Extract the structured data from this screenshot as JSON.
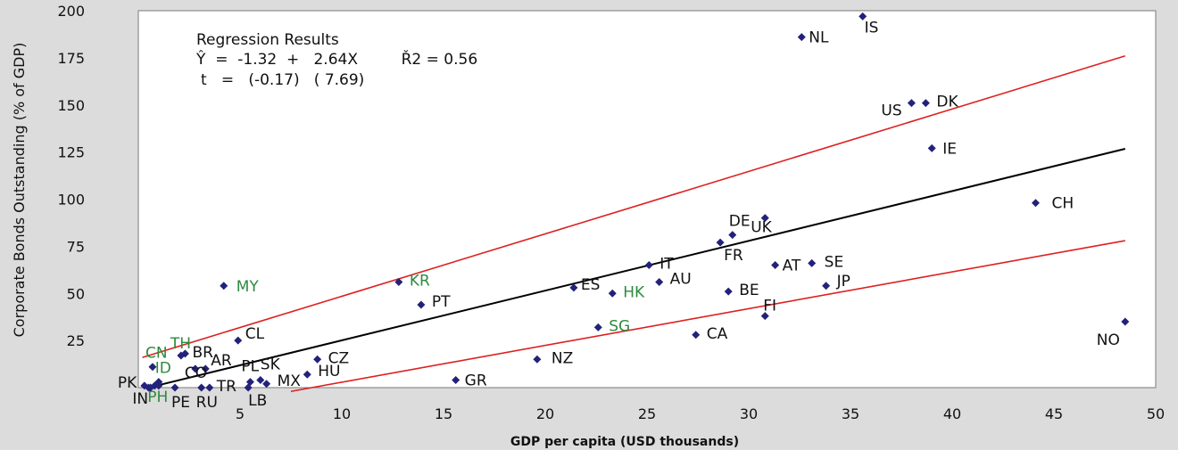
{
  "chart_data": {
    "type": "scatter",
    "xlabel": "GDP per capita (USD thousands)",
    "ylabel": "Corporate Bonds Outstanding (% of GDP)",
    "xlim": [
      0,
      50
    ],
    "ylim": [
      0,
      200
    ],
    "xticks": [
      5,
      10,
      15,
      20,
      25,
      30,
      35,
      40,
      45,
      50
    ],
    "yticks": [
      25,
      50,
      75,
      100,
      125,
      150,
      175,
      200
    ],
    "regression_text": {
      "title": "Regression Results",
      "line1": "Ŷ  =  -1.32  +   2.64X         Ř2 = 0.56",
      "line2": "t   =   (-0.17)   ( 7.69)"
    },
    "regression_line": {
      "intercept": -1.32,
      "slope": 2.64,
      "color": "#000000"
    },
    "band_lines": [
      {
        "from": [
          0.2,
          16
        ],
        "to": [
          48.5,
          176
        ],
        "color": "#dd2020"
      },
      {
        "from": [
          7.5,
          -2
        ],
        "to": [
          48.5,
          78
        ],
        "color": "#dd2020"
      }
    ],
    "marker_color": "#22227a",
    "colors": {
      "default_label": "#111111",
      "highlight_label": "#2e8b3e"
    },
    "points": [
      {
        "label": "IS",
        "x": 35.6,
        "y": 197,
        "dx": 2,
        "dy": 18
      },
      {
        "label": "NL",
        "x": 32.6,
        "y": 186,
        "dx": 8,
        "dy": 6
      },
      {
        "label": "US",
        "x": 38.0,
        "y": 151,
        "dx": -34,
        "dy": 14
      },
      {
        "label": "DK",
        "x": 38.7,
        "y": 151,
        "dx": 12,
        "dy": 4
      },
      {
        "label": "IE",
        "x": 39.0,
        "y": 127,
        "dx": 12,
        "dy": 6
      },
      {
        "label": "CH",
        "x": 44.1,
        "y": 98,
        "dx": 18,
        "dy": 6
      },
      {
        "label": "DE",
        "x": 29.2,
        "y": 81,
        "dx": -4,
        "dy": -10
      },
      {
        "label": "UK",
        "x": 30.8,
        "y": 90,
        "dx": -16,
        "dy": 16
      },
      {
        "label": "FR",
        "x": 28.6,
        "y": 77,
        "dx": 4,
        "dy": 20
      },
      {
        "label": "IT",
        "x": 25.1,
        "y": 65,
        "dx": 12,
        "dy": 4
      },
      {
        "label": "AU",
        "x": 25.6,
        "y": 56,
        "dx": 12,
        "dy": 2
      },
      {
        "label": "AT",
        "x": 31.3,
        "y": 65,
        "dx": 8,
        "dy": 6
      },
      {
        "label": "SE",
        "x": 33.1,
        "y": 66,
        "dx": 14,
        "dy": 4
      },
      {
        "label": "JP",
        "x": 33.8,
        "y": 54,
        "dx": 12,
        "dy": 0
      },
      {
        "label": "BE",
        "x": 29.0,
        "y": 51,
        "dx": 12,
        "dy": 4
      },
      {
        "label": "FI",
        "x": 30.8,
        "y": 38,
        "dx": -2,
        "dy": -6
      },
      {
        "label": "ES",
        "x": 21.4,
        "y": 53,
        "dx": 8,
        "dy": 2
      },
      {
        "label": "HK",
        "x": 23.3,
        "y": 50,
        "dx": 12,
        "dy": 4,
        "highlight": true
      },
      {
        "label": "SG",
        "x": 22.6,
        "y": 32,
        "dx": 12,
        "dy": 4,
        "highlight": true
      },
      {
        "label": "CA",
        "x": 27.4,
        "y": 28,
        "dx": 12,
        "dy": 4
      },
      {
        "label": "NZ",
        "x": 19.6,
        "y": 15,
        "dx": 16,
        "dy": 4
      },
      {
        "label": "NO",
        "x": 48.5,
        "y": 35,
        "dx": -32,
        "dy": 26
      },
      {
        "label": "KR",
        "x": 12.8,
        "y": 56,
        "dx": 12,
        "dy": 4,
        "highlight": true
      },
      {
        "label": "PT",
        "x": 13.9,
        "y": 44,
        "dx": 12,
        "dy": 2
      },
      {
        "label": "MY",
        "x": 4.2,
        "y": 54,
        "dx": 14,
        "dy": 6,
        "highlight": true
      },
      {
        "label": "CL",
        "x": 4.9,
        "y": 25,
        "dx": 8,
        "dy": -2
      },
      {
        "label": "CZ",
        "x": 8.8,
        "y": 15,
        "dx": 12,
        "dy": 4
      },
      {
        "label": "HU",
        "x": 8.3,
        "y": 7,
        "dx": 12,
        "dy": 2
      },
      {
        "label": "GR",
        "x": 15.6,
        "y": 4,
        "dx": 10,
        "dy": 6
      },
      {
        "label": "MX",
        "x": 6.3,
        "y": 2,
        "dx": 12,
        "dy": 2
      },
      {
        "label": "PL",
        "x": 5.5,
        "y": 3,
        "dx": -10,
        "dy": -12
      },
      {
        "label": "SK",
        "x": 6.0,
        "y": 4,
        "dx": 0,
        "dy": -12
      },
      {
        "label": "LB",
        "x": 5.4,
        "y": 0,
        "dx": 0,
        "dy": 20
      },
      {
        "label": "TR",
        "x": 3.5,
        "y": 0,
        "dx": 8,
        "dy": 4
      },
      {
        "label": "RU",
        "x": 3.1,
        "y": 0,
        "dx": -6,
        "dy": 22
      },
      {
        "label": "PE",
        "x": 1.8,
        "y": 0,
        "dx": -4,
        "dy": 22
      },
      {
        "label": "BR",
        "x": 2.3,
        "y": 18,
        "dx": 8,
        "dy": 4
      },
      {
        "label": "AR",
        "x": 3.3,
        "y": 10,
        "dx": 6,
        "dy": -4
      },
      {
        "label": "CO",
        "x": 2.8,
        "y": 10,
        "dx": -12,
        "dy": 10
      },
      {
        "label": "TH",
        "x": 2.1,
        "y": 17,
        "dx": -12,
        "dy": -8,
        "highlight": true
      },
      {
        "label": "CN",
        "x": 0.7,
        "y": 11,
        "dx": -8,
        "dy": -10,
        "highlight": true
      },
      {
        "label": "ID",
        "x": 1.0,
        "y": 3,
        "dx": -4,
        "dy": -10,
        "highlight": true
      },
      {
        "label": "PH",
        "x": 0.8,
        "y": 1,
        "dx": -8,
        "dy": 18,
        "highlight": true
      },
      {
        "label": "IN",
        "x": 0.5,
        "y": 0,
        "dx": -18,
        "dy": 18
      },
      {
        "label": "PK",
        "x": 0.3,
        "y": 1,
        "dx": -30,
        "dy": 2
      },
      {
        "label": "",
        "x": 0.6,
        "y": 0,
        "dx": 0,
        "dy": 0
      },
      {
        "label": "",
        "x": 1.0,
        "y": 1,
        "dx": 0,
        "dy": 0
      }
    ]
  }
}
